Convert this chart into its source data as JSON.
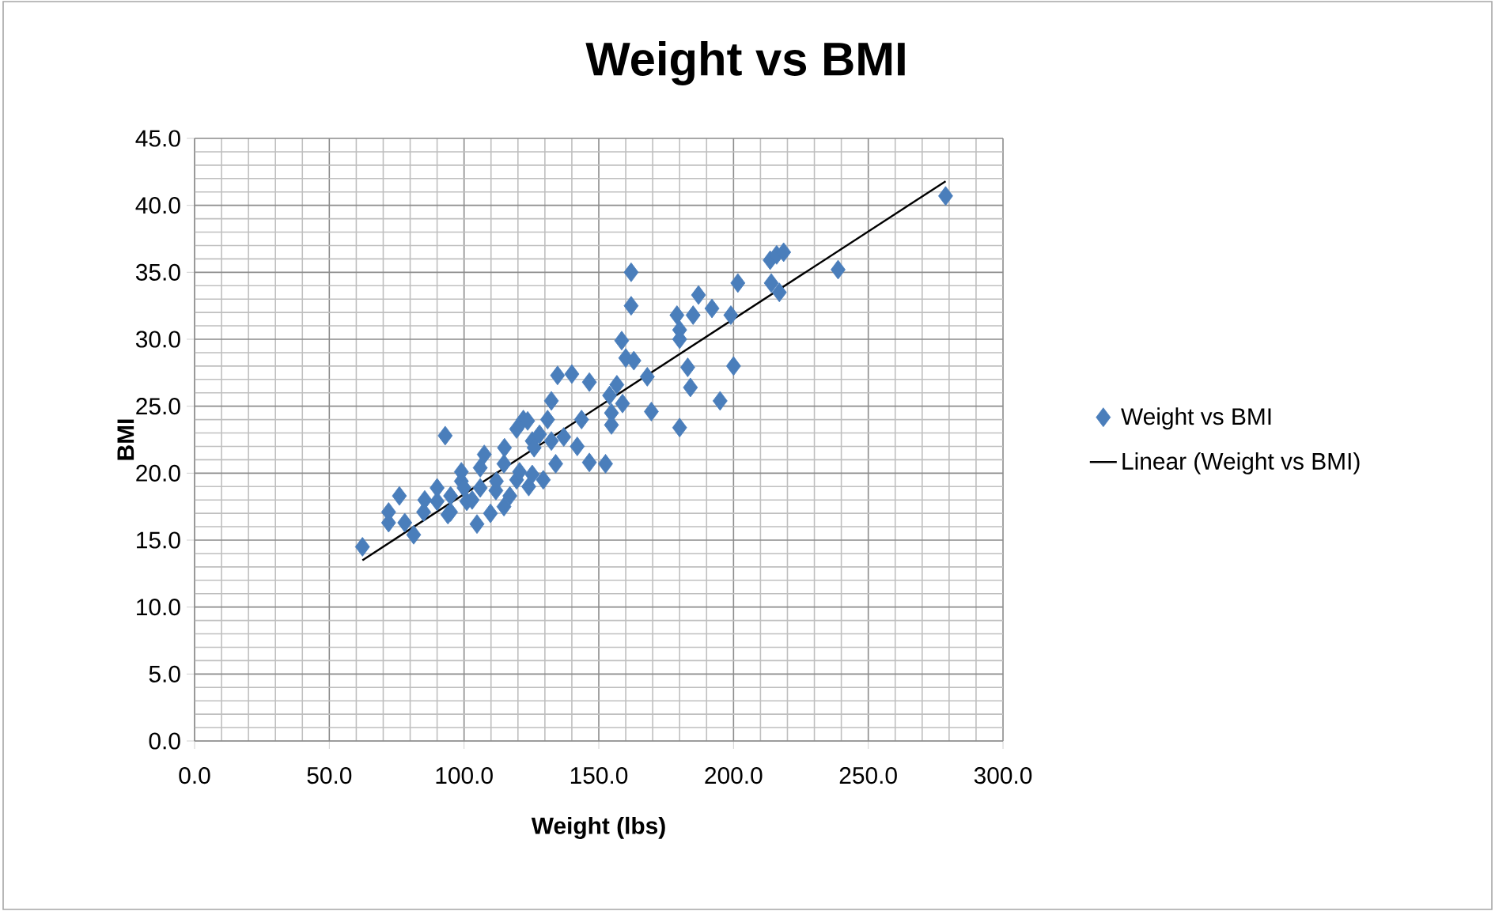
{
  "chart_data": {
    "type": "scatter",
    "title": "Weight vs BMI",
    "xlabel": "Weight (lbs)",
    "ylabel": "BMI",
    "xlim": [
      0,
      300
    ],
    "ylim": [
      0,
      45
    ],
    "xticks": [
      {
        "value": 0,
        "label": "0.0"
      },
      {
        "value": 50,
        "label": "50.0"
      },
      {
        "value": 100,
        "label": "100.0"
      },
      {
        "value": 150,
        "label": "150.0"
      },
      {
        "value": 200,
        "label": "200.0"
      },
      {
        "value": 250,
        "label": "250.0"
      },
      {
        "value": 300,
        "label": "300.0"
      }
    ],
    "yticks": [
      {
        "value": 0,
        "label": "0.0"
      },
      {
        "value": 5,
        "label": "5.0"
      },
      {
        "value": 10,
        "label": "10.0"
      },
      {
        "value": 15,
        "label": "15.0"
      },
      {
        "value": 20,
        "label": "20.0"
      },
      {
        "value": 25,
        "label": "25.0"
      },
      {
        "value": 30,
        "label": "30.0"
      },
      {
        "value": 35,
        "label": "35.0"
      },
      {
        "value": 40,
        "label": "40.0"
      },
      {
        "value": 45,
        "label": "45.0"
      }
    ],
    "grid": true,
    "legend": "right",
    "marker": "diamond",
    "series": [
      {
        "name": "Weight vs BMI",
        "color": "#4a7ebb",
        "x": [
          62.3,
          72,
          72,
          76,
          78,
          81.3,
          85,
          85.4,
          90,
          90,
          93,
          94,
          95,
          95,
          99,
          99,
          100,
          101,
          103,
          104.8,
          106,
          106,
          107.5,
          109.8,
          111.8,
          112,
          114.8,
          114.8,
          115,
          117,
          119.5,
          119.5,
          120.6,
          122,
          123.6,
          124,
          125.3,
          125.3,
          126,
          128,
          129.4,
          131,
          132.4,
          132.4,
          134,
          134.7,
          137,
          140,
          142,
          143.6,
          146.5,
          146.5,
          152.5,
          154,
          154.7,
          154.7,
          156.7,
          158.5,
          158.8,
          160,
          162,
          162,
          163,
          168,
          169.5,
          179,
          180,
          180,
          180,
          183,
          184,
          185,
          187,
          192,
          195,
          199,
          200,
          201.6,
          213.6,
          214,
          216,
          218.6,
          217,
          238.8,
          278.7
        ],
        "values": [
          14.5,
          16.3,
          17.1,
          18.3,
          16.3,
          15.4,
          17.1,
          18.0,
          17.9,
          18.9,
          22.8,
          16.9,
          17.1,
          18.3,
          19.4,
          20.1,
          18.9,
          17.9,
          18.0,
          16.2,
          18.9,
          20.4,
          21.4,
          17.0,
          18.7,
          19.4,
          20.7,
          17.5,
          21.9,
          18.3,
          23.3,
          19.5,
          20.1,
          24.0,
          23.9,
          19.0,
          22.4,
          19.9,
          21.9,
          22.9,
          19.5,
          24.0,
          25.4,
          22.4,
          20.7,
          27.3,
          22.7,
          27.4,
          22.0,
          24.0,
          26.8,
          20.8,
          20.7,
          25.8,
          23.6,
          24.5,
          26.6,
          29.9,
          25.2,
          28.6,
          35.0,
          32.5,
          28.4,
          27.2,
          24.6,
          31.8,
          30.7,
          30.0,
          23.4,
          27.9,
          26.4,
          31.8,
          33.3,
          32.3,
          25.4,
          31.8,
          28.0,
          34.2,
          35.9,
          34.2,
          36.3,
          36.5,
          33.5,
          35.2,
          40.7
        ]
      },
      {
        "name": "Linear (Weight vs BMI)",
        "type": "line",
        "marker": "none",
        "color": "#000000",
        "x": [
          62.3,
          278.7
        ],
        "values": [
          13.5,
          41.8
        ]
      }
    ]
  }
}
